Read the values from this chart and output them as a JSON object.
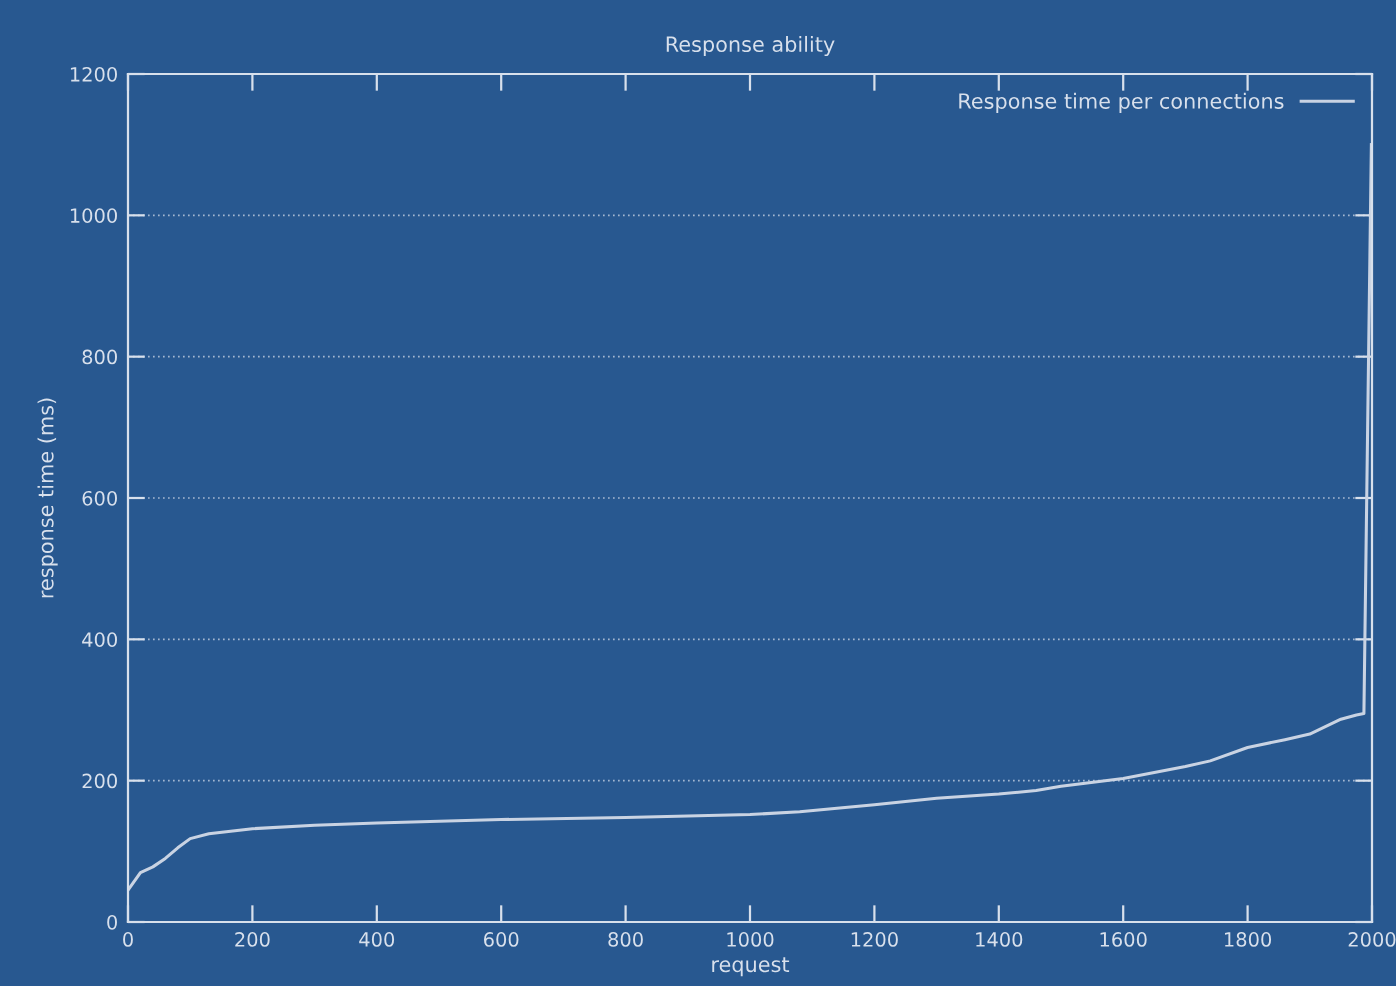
{
  "chart_data": {
    "type": "line",
    "title": "Response ability",
    "xlabel": "request",
    "ylabel": "response time (ms)",
    "xlim": [
      0,
      2000
    ],
    "ylim": [
      0,
      1200
    ],
    "xticks": [
      0,
      200,
      400,
      600,
      800,
      1000,
      1200,
      1400,
      1600,
      1800,
      2000
    ],
    "yticks": [
      0,
      200,
      400,
      600,
      800,
      1000,
      1200
    ],
    "grid": "y",
    "legend": "top right",
    "line_style": "solid",
    "marker": "none",
    "series": [
      {
        "name": "Response time per connections",
        "color": "#c9d3e3",
        "x": [
          0,
          20,
          40,
          60,
          80,
          100,
          130,
          200,
          300,
          400,
          600,
          800,
          1000,
          1080,
          1200,
          1300,
          1400,
          1460,
          1500,
          1600,
          1700,
          1740,
          1800,
          1860,
          1900,
          1950,
          1975,
          1987,
          1993,
          1999
        ],
        "values": [
          45,
          70,
          78,
          90,
          105,
          118,
          125,
          132,
          137,
          140,
          145,
          148,
          152,
          156,
          166,
          175,
          181,
          186,
          192,
          203,
          220,
          228,
          247,
          258,
          266,
          287,
          293,
          295,
          700,
          1100
        ]
      }
    ]
  }
}
